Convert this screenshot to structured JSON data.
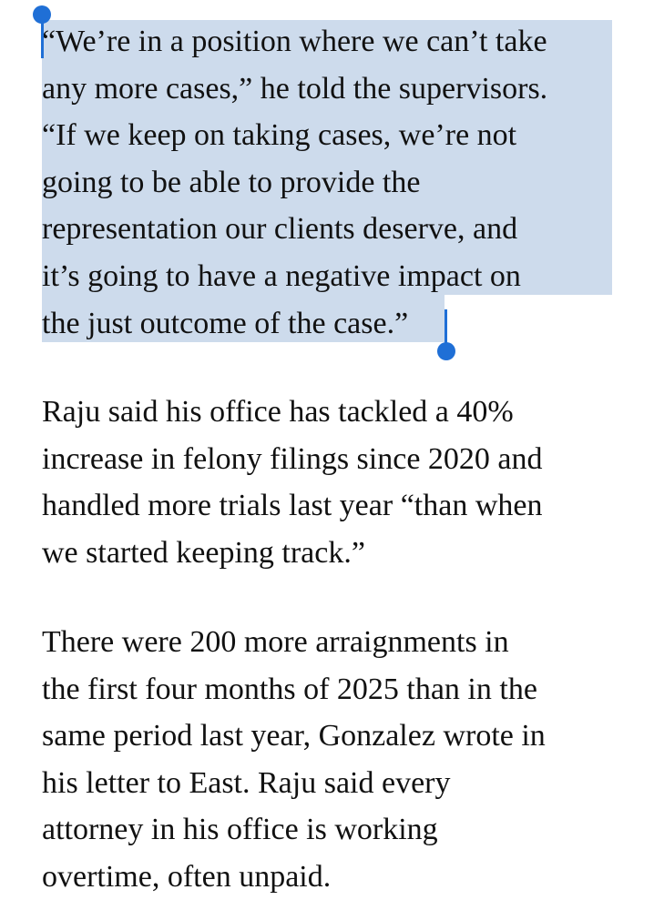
{
  "article": {
    "quote_paragraph": [
      "“We’re in a position where we can’t take",
      "any more cases,” he told the supervisors.",
      "“If we keep on taking cases, we’re not",
      "going to be able to provide the",
      "representation our clients deserve, and",
      "it’s going to have a negative impact on",
      "the just outcome of the case.”"
    ],
    "paragraph_2": [
      "Raju said his office has tackled a 40%",
      "increase in felony filings since 2020 and",
      "handled more trials last year “than when",
      "we started keeping track.”"
    ],
    "paragraph_3": [
      "There were 200 more arraignments in",
      "the first four months of 2025 than in the",
      "same period last year, Gonzalez wrote in",
      "his letter to East. Raju said every",
      "attorney in his office is working",
      "overtime, often unpaid."
    ]
  },
  "selection": {
    "highlight_color": "#cddbec",
    "handle_color": "#1f6fd6",
    "selected_paragraph": "quote_paragraph"
  }
}
